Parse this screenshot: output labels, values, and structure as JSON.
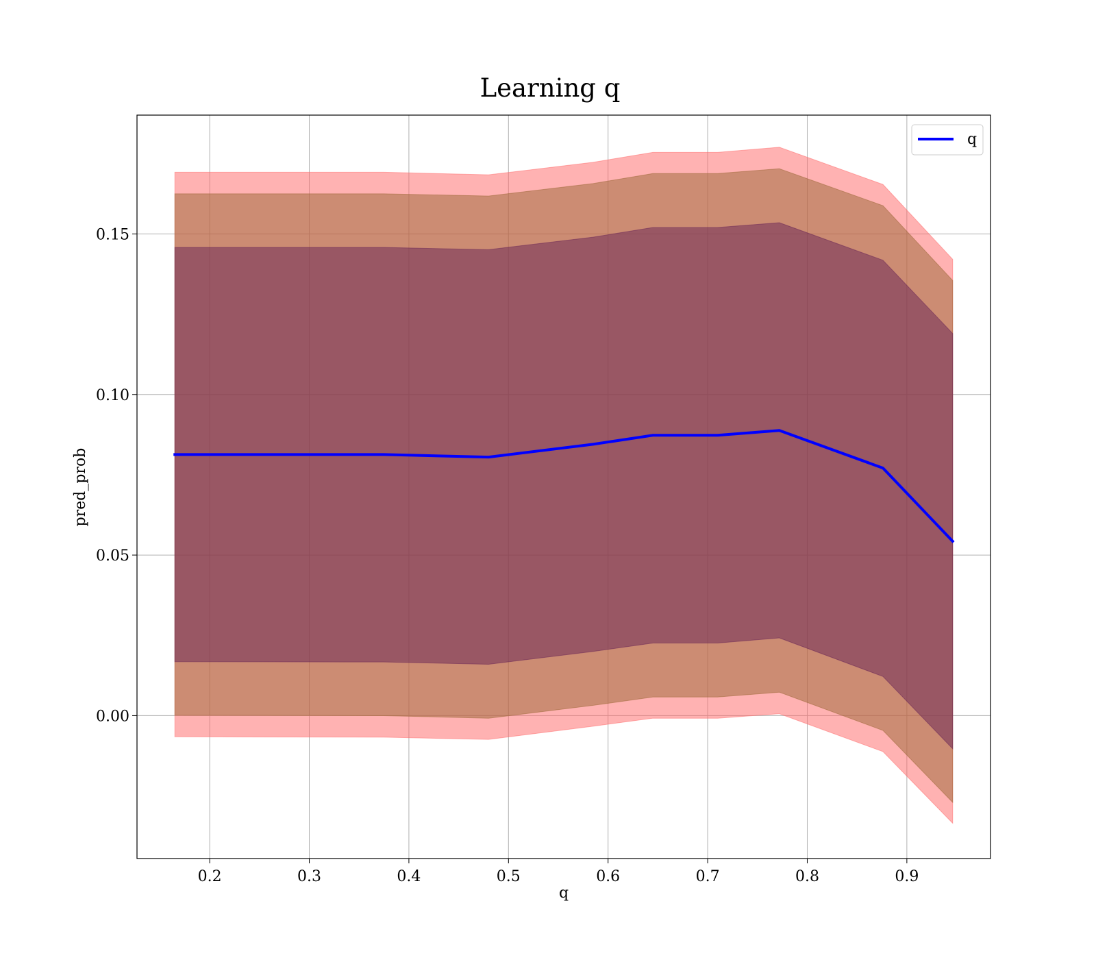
{
  "chart_data": {
    "type": "line",
    "title": "Learning q",
    "xlabel": "q",
    "ylabel": "pred_prob",
    "xlim": [
      0.127,
      0.984
    ],
    "ylim": [
      -0.0445,
      0.187
    ],
    "grid": true,
    "legend_position": "top-right",
    "x_ticks": [
      0.2,
      0.3,
      0.4,
      0.5,
      0.6,
      0.7,
      0.8,
      0.9
    ],
    "x_tick_labels": [
      "0.2",
      "0.3",
      "0.4",
      "0.5",
      "0.6",
      "0.7",
      "0.8",
      "0.9"
    ],
    "y_ticks": [
      0.0,
      0.05,
      0.1,
      0.15
    ],
    "y_tick_labels": [
      "0.00",
      "0.05",
      "0.10",
      "0.15"
    ],
    "x": [
      0.165,
      0.375,
      0.48,
      0.585,
      0.645,
      0.71,
      0.772,
      0.876,
      0.946
    ],
    "series": [
      {
        "name": "q",
        "color": "#0000ff",
        "values": [
          0.0813,
          0.0813,
          0.0805,
          0.0845,
          0.0873,
          0.0873,
          0.0888,
          0.0771,
          0.0543
        ]
      }
    ],
    "bands": [
      {
        "color": "#ff6666",
        "opacity": 0.5,
        "lower": [
          -0.0066,
          -0.0067,
          -0.0074,
          -0.0033,
          -0.0008,
          -0.0008,
          0.0006,
          -0.0112,
          -0.0335
        ],
        "upper": [
          0.1692,
          0.1692,
          0.1684,
          0.1723,
          0.1754,
          0.1754,
          0.177,
          0.1654,
          0.1421
        ]
      },
      {
        "color": "#996633",
        "opacity": 0.5,
        "lower": [
          0.0001,
          0.0,
          -0.0008,
          0.0032,
          0.0058,
          0.0058,
          0.0073,
          -0.0046,
          -0.027
        ],
        "upper": [
          0.1625,
          0.1625,
          0.1618,
          0.1657,
          0.1688,
          0.1688,
          0.1703,
          0.1588,
          0.1355
        ]
      },
      {
        "color": "#662255",
        "opacity": 0.5,
        "lower": [
          0.0168,
          0.0167,
          0.016,
          0.02,
          0.0226,
          0.0226,
          0.0242,
          0.0122,
          -0.0103
        ],
        "upper": [
          0.1458,
          0.1458,
          0.1451,
          0.149,
          0.152,
          0.152,
          0.1535,
          0.1418,
          0.119
        ]
      }
    ]
  }
}
